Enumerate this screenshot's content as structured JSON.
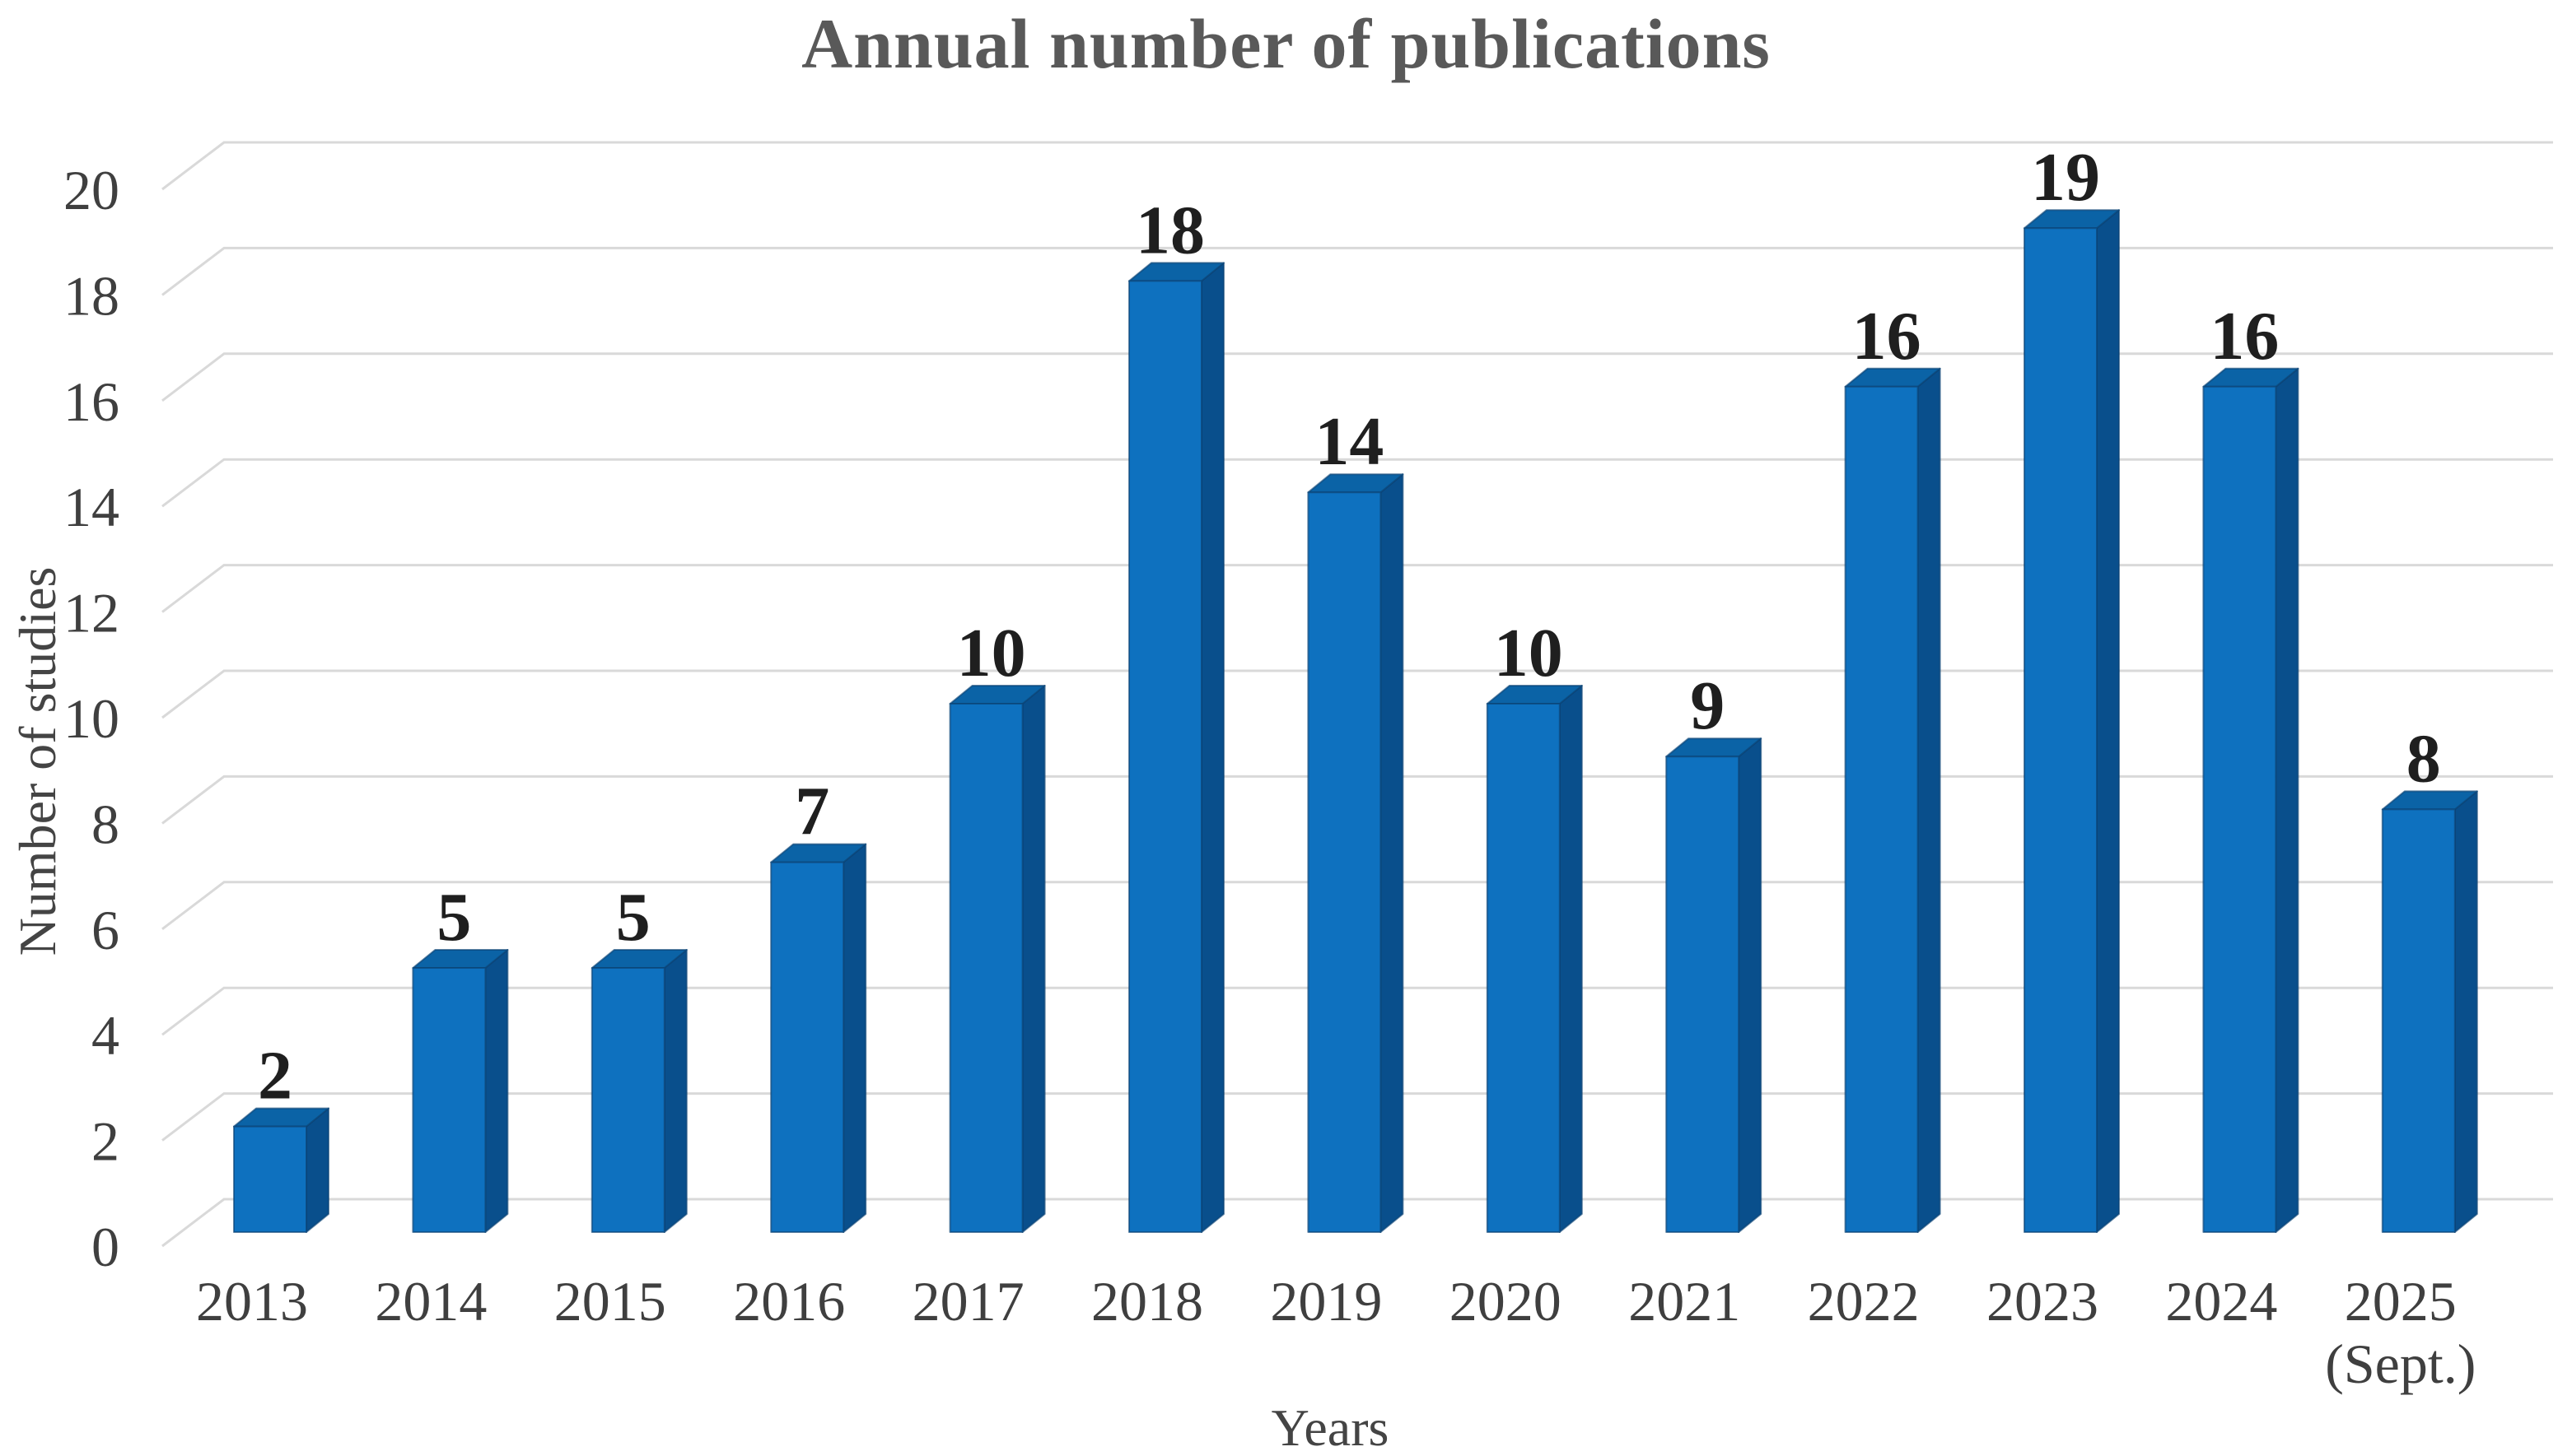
{
  "title": "Annual number of publications",
  "y_axis_title": "Number of studies",
  "x_axis_title": "Years",
  "colors": {
    "background": "#FFFFFF",
    "bar_front": "#0E71BF",
    "bar_top": "#0B63A6",
    "bar_side": "#094F8C",
    "bar_edge": "#0A4273",
    "gridline": "#D9D9D9",
    "title_text": "#595959",
    "axis_title_text": "#444444",
    "tick_text": "#3F3F3F",
    "data_label_text": "#1F1F1F"
  },
  "chart_data": {
    "type": "bar",
    "style": "3d-column",
    "title": "Annual number of publications",
    "xlabel": "Years",
    "ylabel": "Number of studies",
    "categories": [
      "2013",
      "2014",
      "2015",
      "2016",
      "2017",
      "2018",
      "2019",
      "2020",
      "2021",
      "2022",
      "2023",
      "2024",
      "2025\n(Sept.)"
    ],
    "values": [
      2,
      5,
      5,
      7,
      10,
      18,
      14,
      10,
      9,
      16,
      19,
      16,
      8
    ],
    "yticks": [
      0,
      2,
      4,
      6,
      8,
      10,
      12,
      14,
      16,
      18,
      20
    ],
    "ylim": [
      0,
      20
    ],
    "grid": true,
    "legend": false,
    "data_labels": true
  }
}
